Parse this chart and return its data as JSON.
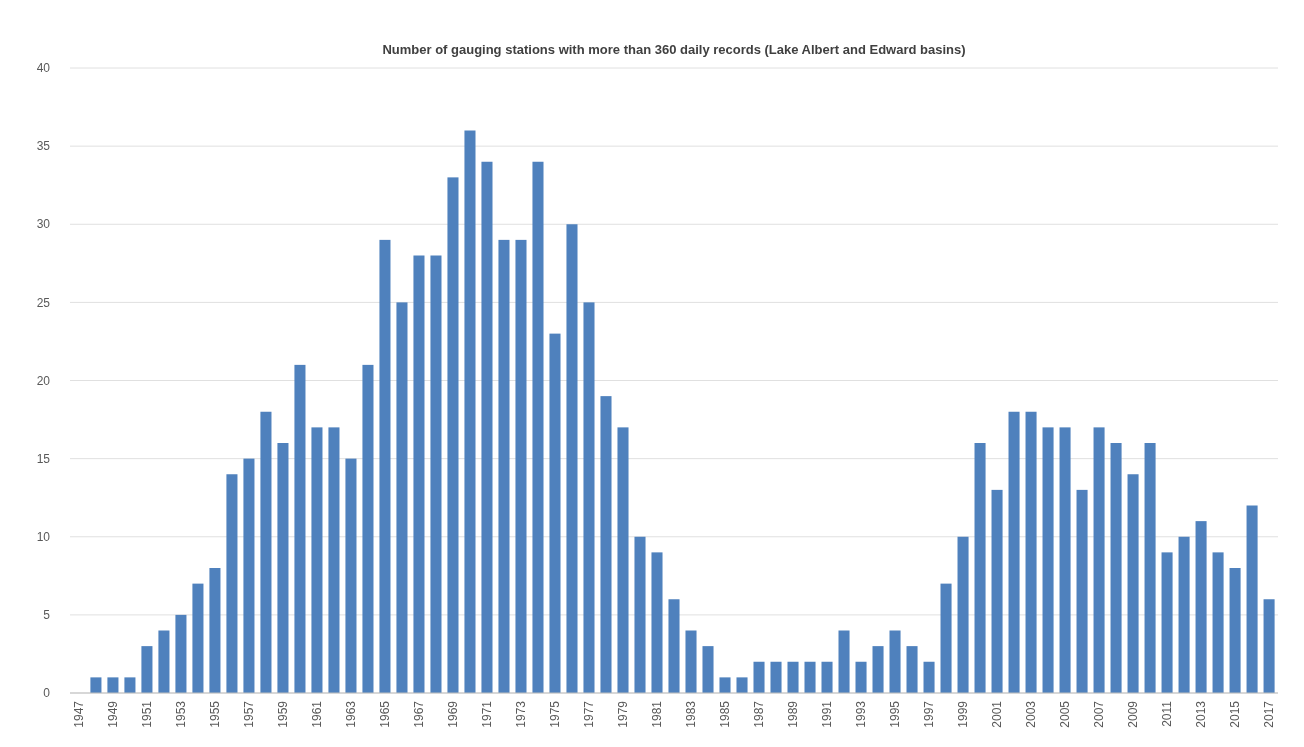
{
  "chart_data": {
    "type": "bar",
    "title": "Number of gauging stations with more than 360 daily records (Lake Albert and Edward basins)",
    "categories": [
      "1947",
      null,
      "1949",
      null,
      "1951",
      null,
      "1953",
      null,
      "1955",
      null,
      "1957",
      null,
      "1959",
      null,
      "1961",
      null,
      "1963",
      null,
      "1965",
      null,
      "1967",
      null,
      "1969",
      null,
      "1971",
      null,
      "1973",
      null,
      "1975",
      null,
      "1977",
      null,
      "1979",
      null,
      "1981",
      null,
      "1983",
      null,
      "1985",
      null,
      "1987",
      null,
      "1989",
      null,
      "1991",
      null,
      "1993",
      null,
      "1995",
      null,
      "1997",
      null,
      "1999",
      null,
      "2001",
      null,
      "2003",
      null,
      "2005",
      null,
      "2007",
      null,
      "2009",
      null,
      "2011",
      null,
      "2013",
      null,
      "2015",
      null,
      "2017"
    ],
    "values": [
      0,
      1,
      1,
      1,
      3,
      4,
      5,
      7,
      8,
      14,
      15,
      18,
      16,
      21,
      17,
      17,
      15,
      21,
      29,
      25,
      28,
      28,
      33,
      36,
      34,
      29,
      29,
      34,
      23,
      30,
      25,
      19,
      17,
      10,
      9,
      6,
      4,
      3,
      1,
      1,
      2,
      2,
      2,
      2,
      2,
      4,
      2,
      3,
      4,
      3,
      2,
      7,
      10,
      16,
      13,
      18,
      18,
      17,
      17,
      13,
      17,
      16,
      14,
      16,
      9,
      10,
      11,
      9,
      8,
      12,
      6
    ],
    "color": "#4f81bd",
    "ylim": [
      0,
      40
    ],
    "yticks": [
      0,
      5,
      10,
      15,
      20,
      25,
      30,
      35,
      40
    ],
    "grid": "y"
  }
}
